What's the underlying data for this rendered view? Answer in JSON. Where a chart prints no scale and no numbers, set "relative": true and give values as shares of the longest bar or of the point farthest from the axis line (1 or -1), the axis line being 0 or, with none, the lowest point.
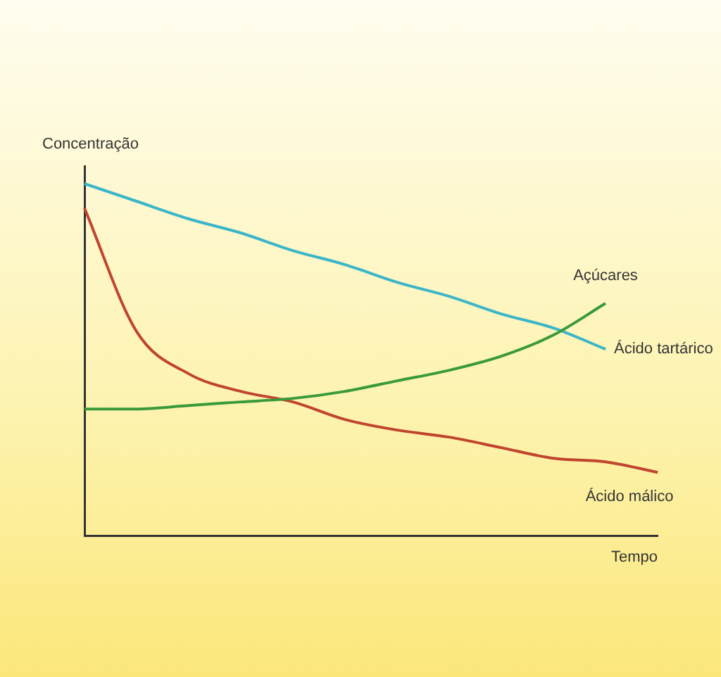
{
  "chart_data": {
    "type": "line",
    "relative": true,
    "xlabel": "Tempo",
    "ylabel": "Concentração",
    "grid": false,
    "legend": false,
    "marker": "none",
    "line_style": "solid",
    "categories": [
      null,
      null,
      null,
      null,
      null,
      null,
      null,
      null,
      null,
      null,
      null,
      null
    ],
    "series": [
      {
        "name": "Açúcares",
        "color": "#3a9a3a",
        "values": [
          0.36,
          0.36,
          0.37,
          0.38,
          0.39,
          0.41,
          0.44,
          0.47,
          0.51,
          0.57,
          0.66,
          null
        ]
      },
      {
        "name": "Ácido tartárico",
        "color": "#3bb6c9",
        "values": [
          1,
          0.95,
          0.9,
          0.86,
          0.81,
          0.77,
          0.72,
          0.68,
          0.63,
          0.59,
          0.53,
          null
        ]
      },
      {
        "name": "Ácido málico",
        "color": "#c0452f",
        "values": [
          0.93,
          0.58,
          0.46,
          0.41,
          0.38,
          0.33,
          0.3,
          0.28,
          0.25,
          0.22,
          0.21,
          0.18
        ]
      }
    ]
  }
}
